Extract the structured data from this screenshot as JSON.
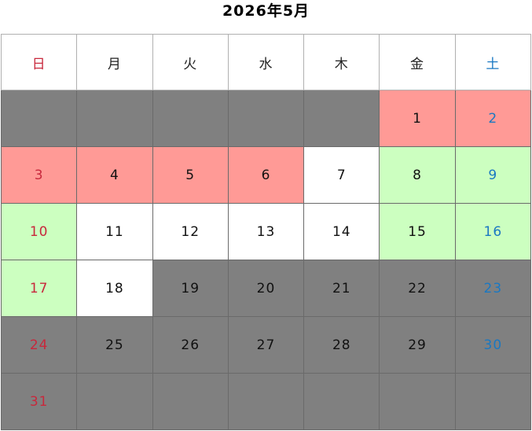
{
  "title": "2026年5月",
  "colors": {
    "closed": "#808080",
    "holiday": "#ff9a96",
    "special": "#ccffc0",
    "open": "#ffffff",
    "sunday_text": "#c8283c",
    "saturday_text": "#1a78c2"
  },
  "weekdays": [
    "日",
    "月",
    "火",
    "水",
    "木",
    "金",
    "土"
  ],
  "weeks": [
    [
      {
        "day": "",
        "status": "closed"
      },
      {
        "day": "",
        "status": "closed"
      },
      {
        "day": "",
        "status": "closed"
      },
      {
        "day": "",
        "status": "closed"
      },
      {
        "day": "",
        "status": "closed"
      },
      {
        "day": "1",
        "status": "holiday"
      },
      {
        "day": "2",
        "status": "holiday"
      }
    ],
    [
      {
        "day": "3",
        "status": "holiday"
      },
      {
        "day": "4",
        "status": "holiday"
      },
      {
        "day": "5",
        "status": "holiday"
      },
      {
        "day": "6",
        "status": "holiday"
      },
      {
        "day": "7",
        "status": "open"
      },
      {
        "day": "8",
        "status": "special"
      },
      {
        "day": "9",
        "status": "special"
      }
    ],
    [
      {
        "day": "10",
        "status": "special"
      },
      {
        "day": "11",
        "status": "open"
      },
      {
        "day": "12",
        "status": "open"
      },
      {
        "day": "13",
        "status": "open"
      },
      {
        "day": "14",
        "status": "open"
      },
      {
        "day": "15",
        "status": "special"
      },
      {
        "day": "16",
        "status": "special"
      }
    ],
    [
      {
        "day": "17",
        "status": "special"
      },
      {
        "day": "18",
        "status": "open"
      },
      {
        "day": "19",
        "status": "closed"
      },
      {
        "day": "20",
        "status": "closed"
      },
      {
        "day": "21",
        "status": "closed"
      },
      {
        "day": "22",
        "status": "closed"
      },
      {
        "day": "23",
        "status": "closed"
      }
    ],
    [
      {
        "day": "24",
        "status": "closed"
      },
      {
        "day": "25",
        "status": "closed"
      },
      {
        "day": "26",
        "status": "closed"
      },
      {
        "day": "27",
        "status": "closed"
      },
      {
        "day": "28",
        "status": "closed"
      },
      {
        "day": "29",
        "status": "closed"
      },
      {
        "day": "30",
        "status": "closed"
      }
    ],
    [
      {
        "day": "31",
        "status": "closed"
      },
      {
        "day": "",
        "status": "closed"
      },
      {
        "day": "",
        "status": "closed"
      },
      {
        "day": "",
        "status": "closed"
      },
      {
        "day": "",
        "status": "closed"
      },
      {
        "day": "",
        "status": "closed"
      },
      {
        "day": "",
        "status": "closed"
      }
    ]
  ]
}
